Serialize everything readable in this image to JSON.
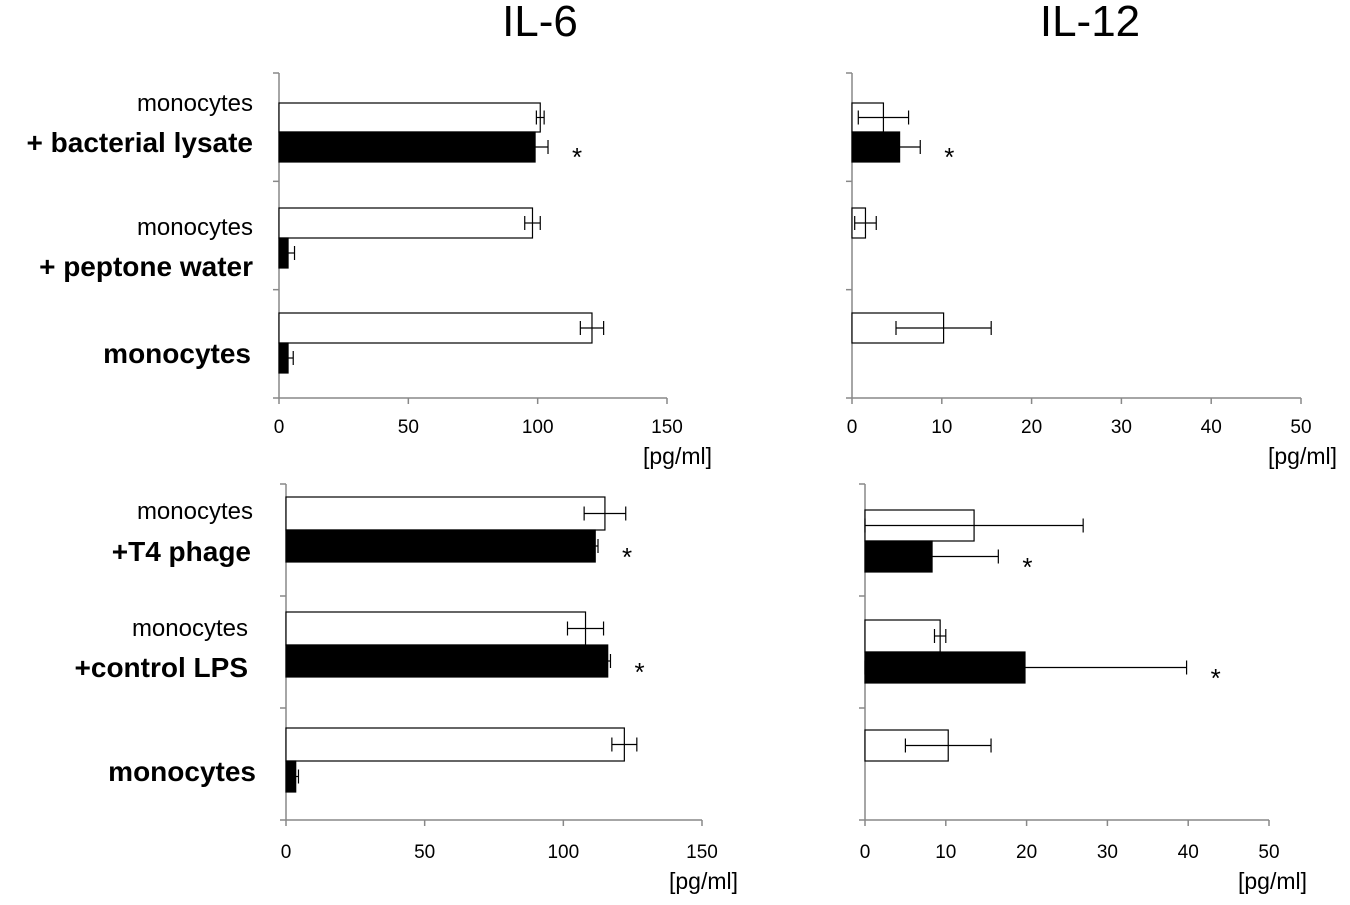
{
  "titles": {
    "left": "IL-6",
    "right": "IL-12"
  },
  "unit_label": "[pg/ml]",
  "colors": {
    "series_a": "#ffffff",
    "series_b": "#000000",
    "axis": "#888888",
    "stroke": "#000000"
  },
  "row_labels": {
    "top": [
      {
        "line1": "monocytes",
        "line2": "+ bacterial lysate"
      },
      {
        "line1": "monocytes",
        "line2": "+ peptone water"
      },
      {
        "line1": "",
        "line2": "monocytes"
      }
    ],
    "bottom": [
      {
        "line1": "monocytes",
        "line2": "+T4 phage"
      },
      {
        "line1": "monocytes",
        "line2": "+control LPS"
      },
      {
        "line1": "",
        "line2": "monocytes"
      }
    ]
  },
  "chart_data": [
    {
      "type": "bar",
      "orientation": "horizontal",
      "title": "IL-6",
      "panel": "top-left",
      "xlabel": "[pg/ml]",
      "xlim": [
        0,
        150
      ],
      "xticks": [
        "0",
        "50",
        "100",
        "150"
      ],
      "categories": [
        "monocytes + bacterial lysate",
        "monocytes + peptone water",
        "monocytes"
      ],
      "series": [
        {
          "name": "white",
          "values": [
            101,
            98,
            121
          ],
          "errors": [
            1.5,
            3,
            4.5
          ]
        },
        {
          "name": "black",
          "values": [
            99,
            3.5,
            3.5
          ],
          "errors": [
            5,
            2.5,
            2
          ]
        }
      ],
      "annotations": [
        {
          "category": 0,
          "series": 1,
          "text": "*"
        }
      ]
    },
    {
      "type": "bar",
      "orientation": "horizontal",
      "title": "IL-12",
      "panel": "top-right",
      "xlabel": "[pg/ml]",
      "xlim": [
        0,
        50
      ],
      "xticks": [
        "0",
        "10",
        "20",
        "30",
        "40",
        "50"
      ],
      "categories": [
        "monocytes + bacterial lysate",
        "monocytes + peptone water",
        "monocytes"
      ],
      "series": [
        {
          "name": "white",
          "values": [
            3.5,
            1.5,
            10.2
          ],
          "errors": [
            2.8,
            1.2,
            5.3
          ]
        },
        {
          "name": "black",
          "values": [
            5.3,
            null,
            null
          ],
          "errors": [
            2.3,
            null,
            null
          ]
        }
      ],
      "annotations": [
        {
          "category": 0,
          "series": 1,
          "text": "*"
        }
      ]
    },
    {
      "type": "bar",
      "orientation": "horizontal",
      "title": "IL-6",
      "panel": "bottom-left",
      "xlabel": "[pg/ml]",
      "xlim": [
        0,
        150
      ],
      "xticks": [
        "0",
        "50",
        "100",
        "150"
      ],
      "categories": [
        "monocytes +T4 phage",
        "monocytes +control LPS",
        "monocytes"
      ],
      "series": [
        {
          "name": "white",
          "values": [
            115,
            108,
            122
          ],
          "errors": [
            7.5,
            6.5,
            4.5
          ]
        },
        {
          "name": "black",
          "values": [
            111.5,
            116,
            3.5
          ],
          "errors": [
            1,
            1,
            1
          ]
        }
      ],
      "annotations": [
        {
          "category": 0,
          "series": 1,
          "text": "*"
        },
        {
          "category": 1,
          "series": 1,
          "text": "*"
        }
      ]
    },
    {
      "type": "bar",
      "orientation": "horizontal",
      "title": "IL-12",
      "panel": "bottom-right",
      "xlabel": "[pg/ml]",
      "xlim": [
        0,
        50
      ],
      "xticks": [
        "0",
        "10",
        "20",
        "30",
        "40",
        "50"
      ],
      "categories": [
        "monocytes +T4 phage",
        "monocytes +control LPS",
        "monocytes"
      ],
      "series": [
        {
          "name": "white",
          "values": [
            13.5,
            9.3,
            10.3
          ],
          "errors": [
            13.5,
            0.7,
            5.3
          ]
        },
        {
          "name": "black",
          "values": [
            8.3,
            19.8,
            null
          ],
          "errors": [
            8.2,
            20,
            null
          ]
        }
      ],
      "annotations": [
        {
          "category": 0,
          "series": 1,
          "text": "*"
        },
        {
          "category": 1,
          "series": 1,
          "text": "*"
        }
      ]
    }
  ]
}
